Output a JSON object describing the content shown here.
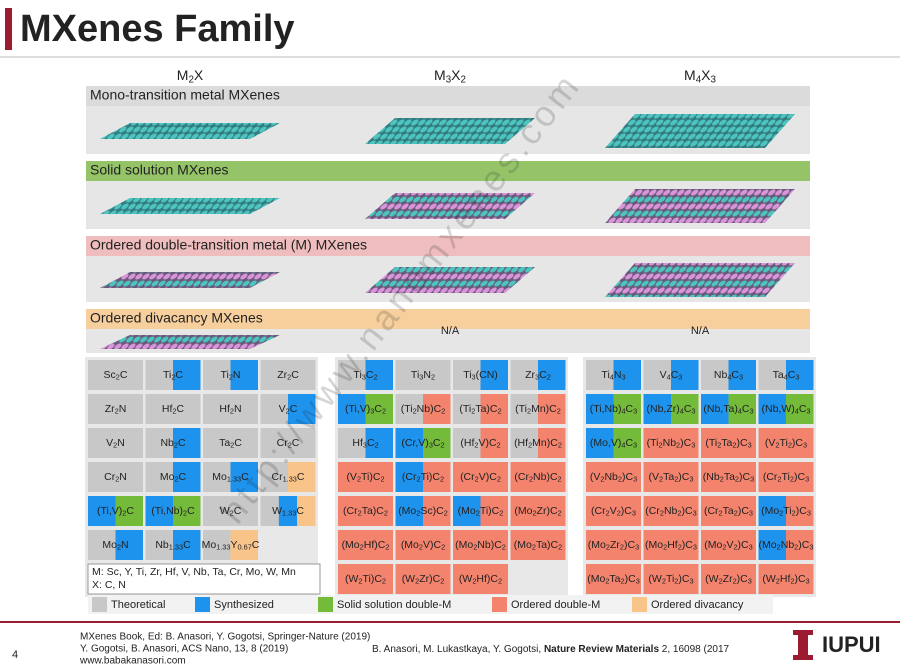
{
  "header": {
    "title": "MXenes Family"
  },
  "columns": [
    "M2X",
    "M3X2",
    "M4X3"
  ],
  "bands": [
    {
      "label": "Mono-transition metal MXenes",
      "color": "#d9d9d9"
    },
    {
      "label": "Solid solution MXenes",
      "color": "#8cc05a"
    },
    {
      "label": "Ordered double-transition metal (M) MXenes",
      "color": "#efb8b8"
    },
    {
      "label": "Ordered divacancy MXenes",
      "color": "#f8cc95"
    }
  ],
  "na_labels": [
    "N/A",
    "N/A"
  ],
  "legend": [
    {
      "label": "Theoretical",
      "color": "#c8c8c8"
    },
    {
      "label": "Synthesized",
      "color": "#1e93ee"
    },
    {
      "label": "Solid solution double-M",
      "color": "#74bb3a"
    },
    {
      "label": "Ordered double-M",
      "color": "#f4836d"
    },
    {
      "label": "Ordered divacancy",
      "color": "#f8c48a"
    }
  ],
  "grids": [
    {
      "rows": [
        [
          {
            "text": "Sc2C",
            "colors": [
              "#c8c8c8"
            ]
          },
          {
            "text": "Ti2C",
            "colors": [
              "#c8c8c8",
              "#1e93ee"
            ]
          },
          {
            "text": "Ti2N",
            "colors": [
              "#c8c8c8",
              "#1e93ee"
            ]
          },
          {
            "text": "Zr2C",
            "colors": [
              "#c8c8c8"
            ]
          }
        ],
        [
          {
            "text": "Zr2N",
            "colors": [
              "#c8c8c8"
            ]
          },
          {
            "text": "Hf2C",
            "colors": [
              "#c8c8c8"
            ]
          },
          {
            "text": "Hf2N",
            "colors": [
              "#c8c8c8"
            ]
          },
          {
            "text": "V2C",
            "colors": [
              "#c8c8c8",
              "#1e93ee"
            ]
          }
        ],
        [
          {
            "text": "V2N",
            "colors": [
              "#c8c8c8"
            ]
          },
          {
            "text": "Nb2C",
            "colors": [
              "#c8c8c8",
              "#1e93ee"
            ]
          },
          {
            "text": "Ta2C",
            "colors": [
              "#c8c8c8"
            ]
          },
          {
            "text": "Cr2C",
            "colors": [
              "#c8c8c8"
            ]
          }
        ],
        [
          {
            "text": "Cr2N",
            "colors": [
              "#c8c8c8"
            ]
          },
          {
            "text": "Mo2C",
            "colors": [
              "#c8c8c8",
              "#1e93ee"
            ]
          },
          {
            "text": "Mo1.33C",
            "colors": [
              "#c8c8c8",
              "#1e93ee"
            ]
          },
          {
            "text": "Cr1.33C",
            "colors": [
              "#c8c8c8",
              "#f8c48a"
            ]
          }
        ],
        [
          {
            "text": "(Ti,V)2C",
            "colors": [
              "#1e93ee",
              "#74bb3a"
            ]
          },
          {
            "text": "(Ti,Nb)2C",
            "colors": [
              "#1e93ee",
              "#74bb3a"
            ]
          },
          {
            "text": "W2C",
            "colors": [
              "#c8c8c8"
            ]
          },
          {
            "text": "W1.33C",
            "colors": [
              "#c8c8c8",
              "#1e93ee",
              "#f8c48a"
            ]
          }
        ],
        [
          {
            "text": "Mo2N",
            "colors": [
              "#c8c8c8",
              "#1e93ee"
            ]
          },
          {
            "text": "Nb1.33C",
            "colors": [
              "#c8c8c8",
              "#1e93ee"
            ]
          },
          {
            "text": "Mo1.33Y0.67C",
            "colors": [
              "#c8c8c8",
              "#f8c48a"
            ]
          }
        ]
      ],
      "note": [
        "M: Sc, Y, Ti, Zr, Hf, V, Nb, Ta, Cr, Mo, W, Mn",
        "X: C, N"
      ]
    },
    {
      "rows": [
        [
          {
            "text": "Ti3C2",
            "colors": [
              "#c8c8c8",
              "#1e93ee"
            ]
          },
          {
            "text": "Ti3N2",
            "colors": [
              "#c8c8c8"
            ]
          },
          {
            "text": "Ti3(CN)",
            "colors": [
              "#c8c8c8",
              "#1e93ee"
            ]
          },
          {
            "text": "Zr3C2",
            "colors": [
              "#c8c8c8",
              "#1e93ee"
            ]
          }
        ],
        [
          {
            "text": "(Ti,V)3C2",
            "colors": [
              "#1e93ee",
              "#74bb3a"
            ]
          },
          {
            "text": "(Ti2Nb)C2",
            "colors": [
              "#c8c8c8",
              "#f4836d"
            ]
          },
          {
            "text": "(Ti2Ta)C2",
            "colors": [
              "#c8c8c8",
              "#f4836d"
            ]
          },
          {
            "text": "(Ti2Mn)C2",
            "colors": [
              "#c8c8c8",
              "#f4836d"
            ]
          }
        ],
        [
          {
            "text": "Hf3C2",
            "colors": [
              "#c8c8c8",
              "#1e93ee"
            ]
          },
          {
            "text": "(Cr,V)3C2",
            "colors": [
              "#1e93ee",
              "#74bb3a"
            ]
          },
          {
            "text": "(Hf2V)C2",
            "colors": [
              "#c8c8c8",
              "#f4836d"
            ]
          },
          {
            "text": "(Hf2Mn)C2",
            "colors": [
              "#c8c8c8",
              "#f4836d"
            ]
          }
        ],
        [
          {
            "text": "(V2Ti)C2",
            "colors": [
              "#f4836d"
            ]
          },
          {
            "text": "(Cr2Ti)C2",
            "colors": [
              "#1e93ee",
              "#f4836d"
            ]
          },
          {
            "text": "(Cr2V)C2",
            "colors": [
              "#f4836d"
            ]
          },
          {
            "text": "(Cr2Nb)C2",
            "colors": [
              "#f4836d"
            ]
          }
        ],
        [
          {
            "text": "(Cr2Ta)C2",
            "colors": [
              "#f4836d"
            ]
          },
          {
            "text": "(Mo2Sc)C2",
            "colors": [
              "#1e93ee",
              "#f4836d"
            ]
          },
          {
            "text": "(Mo2Ti)C2",
            "colors": [
              "#1e93ee",
              "#f4836d"
            ]
          },
          {
            "text": "(Mo2Zr)C2",
            "colors": [
              "#f4836d"
            ]
          }
        ],
        [
          {
            "text": "(Mo2Hf)C2",
            "colors": [
              "#f4836d"
            ]
          },
          {
            "text": "(Mo2V)C2",
            "colors": [
              "#f4836d"
            ]
          },
          {
            "text": "(Mo2Nb)C2",
            "colors": [
              "#f4836d"
            ]
          },
          {
            "text": "(Mo2Ta)C2",
            "colors": [
              "#f4836d"
            ]
          }
        ],
        [
          {
            "text": "(W2Ti)C2",
            "colors": [
              "#f4836d"
            ]
          },
          {
            "text": "(W2Zr)C2",
            "colors": [
              "#f4836d"
            ]
          },
          {
            "text": "(W2Hf)C2",
            "colors": [
              "#f4836d"
            ]
          }
        ]
      ]
    },
    {
      "rows": [
        [
          {
            "text": "Ti4N3",
            "colors": [
              "#c8c8c8",
              "#1e93ee"
            ]
          },
          {
            "text": "V4C3",
            "colors": [
              "#c8c8c8",
              "#1e93ee"
            ]
          },
          {
            "text": "Nb4C3",
            "colors": [
              "#c8c8c8",
              "#1e93ee"
            ]
          },
          {
            "text": "Ta4C3",
            "colors": [
              "#c8c8c8",
              "#1e93ee"
            ]
          }
        ],
        [
          {
            "text": "(Ti,Nb)4C3",
            "colors": [
              "#1e93ee",
              "#74bb3a"
            ]
          },
          {
            "text": "(Nb,Zr)4C3",
            "colors": [
              "#1e93ee",
              "#74bb3a"
            ]
          },
          {
            "text": "(Nb,Ta)4C3",
            "colors": [
              "#1e93ee",
              "#74bb3a"
            ]
          },
          {
            "text": "(Nb,W)4C3",
            "colors": [
              "#1e93ee",
              "#74bb3a"
            ]
          }
        ],
        [
          {
            "text": "(Mo,V)4C3",
            "colors": [
              "#1e93ee",
              "#74bb3a"
            ]
          },
          {
            "text": "(Ti2Nb2)C3",
            "colors": [
              "#f4836d"
            ]
          },
          {
            "text": "(Ti2Ta2)C3",
            "colors": [
              "#f4836d"
            ]
          },
          {
            "text": "(V2Ti2)C3",
            "colors": [
              "#f4836d"
            ]
          }
        ],
        [
          {
            "text": "(V2Nb2)C3",
            "colors": [
              "#f4836d"
            ]
          },
          {
            "text": "(V2Ta2)C3",
            "colors": [
              "#f4836d"
            ]
          },
          {
            "text": "(Nb2Ta2)C3",
            "colors": [
              "#f4836d"
            ]
          },
          {
            "text": "(Cr2Ti2)C3",
            "colors": [
              "#f4836d"
            ]
          }
        ],
        [
          {
            "text": "(Cr2V2)C3",
            "colors": [
              "#f4836d"
            ]
          },
          {
            "text": "(Cr2Nb2)C3",
            "colors": [
              "#f4836d"
            ]
          },
          {
            "text": "(Cr2Ta2)C3",
            "colors": [
              "#f4836d"
            ]
          },
          {
            "text": "(Mo2Ti2)C3",
            "colors": [
              "#1e93ee",
              "#f4836d"
            ]
          }
        ],
        [
          {
            "text": "(Mo2Zr2)C3",
            "colors": [
              "#f4836d"
            ]
          },
          {
            "text": "(Mo2Hf2)C3",
            "colors": [
              "#f4836d"
            ]
          },
          {
            "text": "(Mo2V2)C3",
            "colors": [
              "#f4836d"
            ]
          },
          {
            "text": "(Mo2Nb2)C3",
            "colors": [
              "#1e93ee",
              "#f4836d"
            ]
          }
        ],
        [
          {
            "text": "(Mo2Ta2)C3",
            "colors": [
              "#f4836d"
            ]
          },
          {
            "text": "(W2Ti2)C3",
            "colors": [
              "#f4836d"
            ]
          },
          {
            "text": "(W2Zr2)C3",
            "colors": [
              "#f4836d"
            ]
          },
          {
            "text": "(W2Hf2)C3",
            "colors": [
              "#f4836d"
            ]
          }
        ]
      ]
    }
  ],
  "watermark": "http://www.nanomxenes.com",
  "footer": {
    "left": [
      "MXenes Book, Ed: B. Anasori, Y. Gogotsi, Springer-Nature (2019)",
      "Y. Gogotsi, B. Anasori, ACS Nano, 13, 8 (2019)",
      "www.babakanasori.com"
    ],
    "right": [
      "B. Anasori, M. Lukastkaya, Y. Gogotsi, ",
      "Nature Review Materials",
      " 2, 16098 (2017"
    ],
    "page": "4",
    "logo": "IUPUI"
  }
}
